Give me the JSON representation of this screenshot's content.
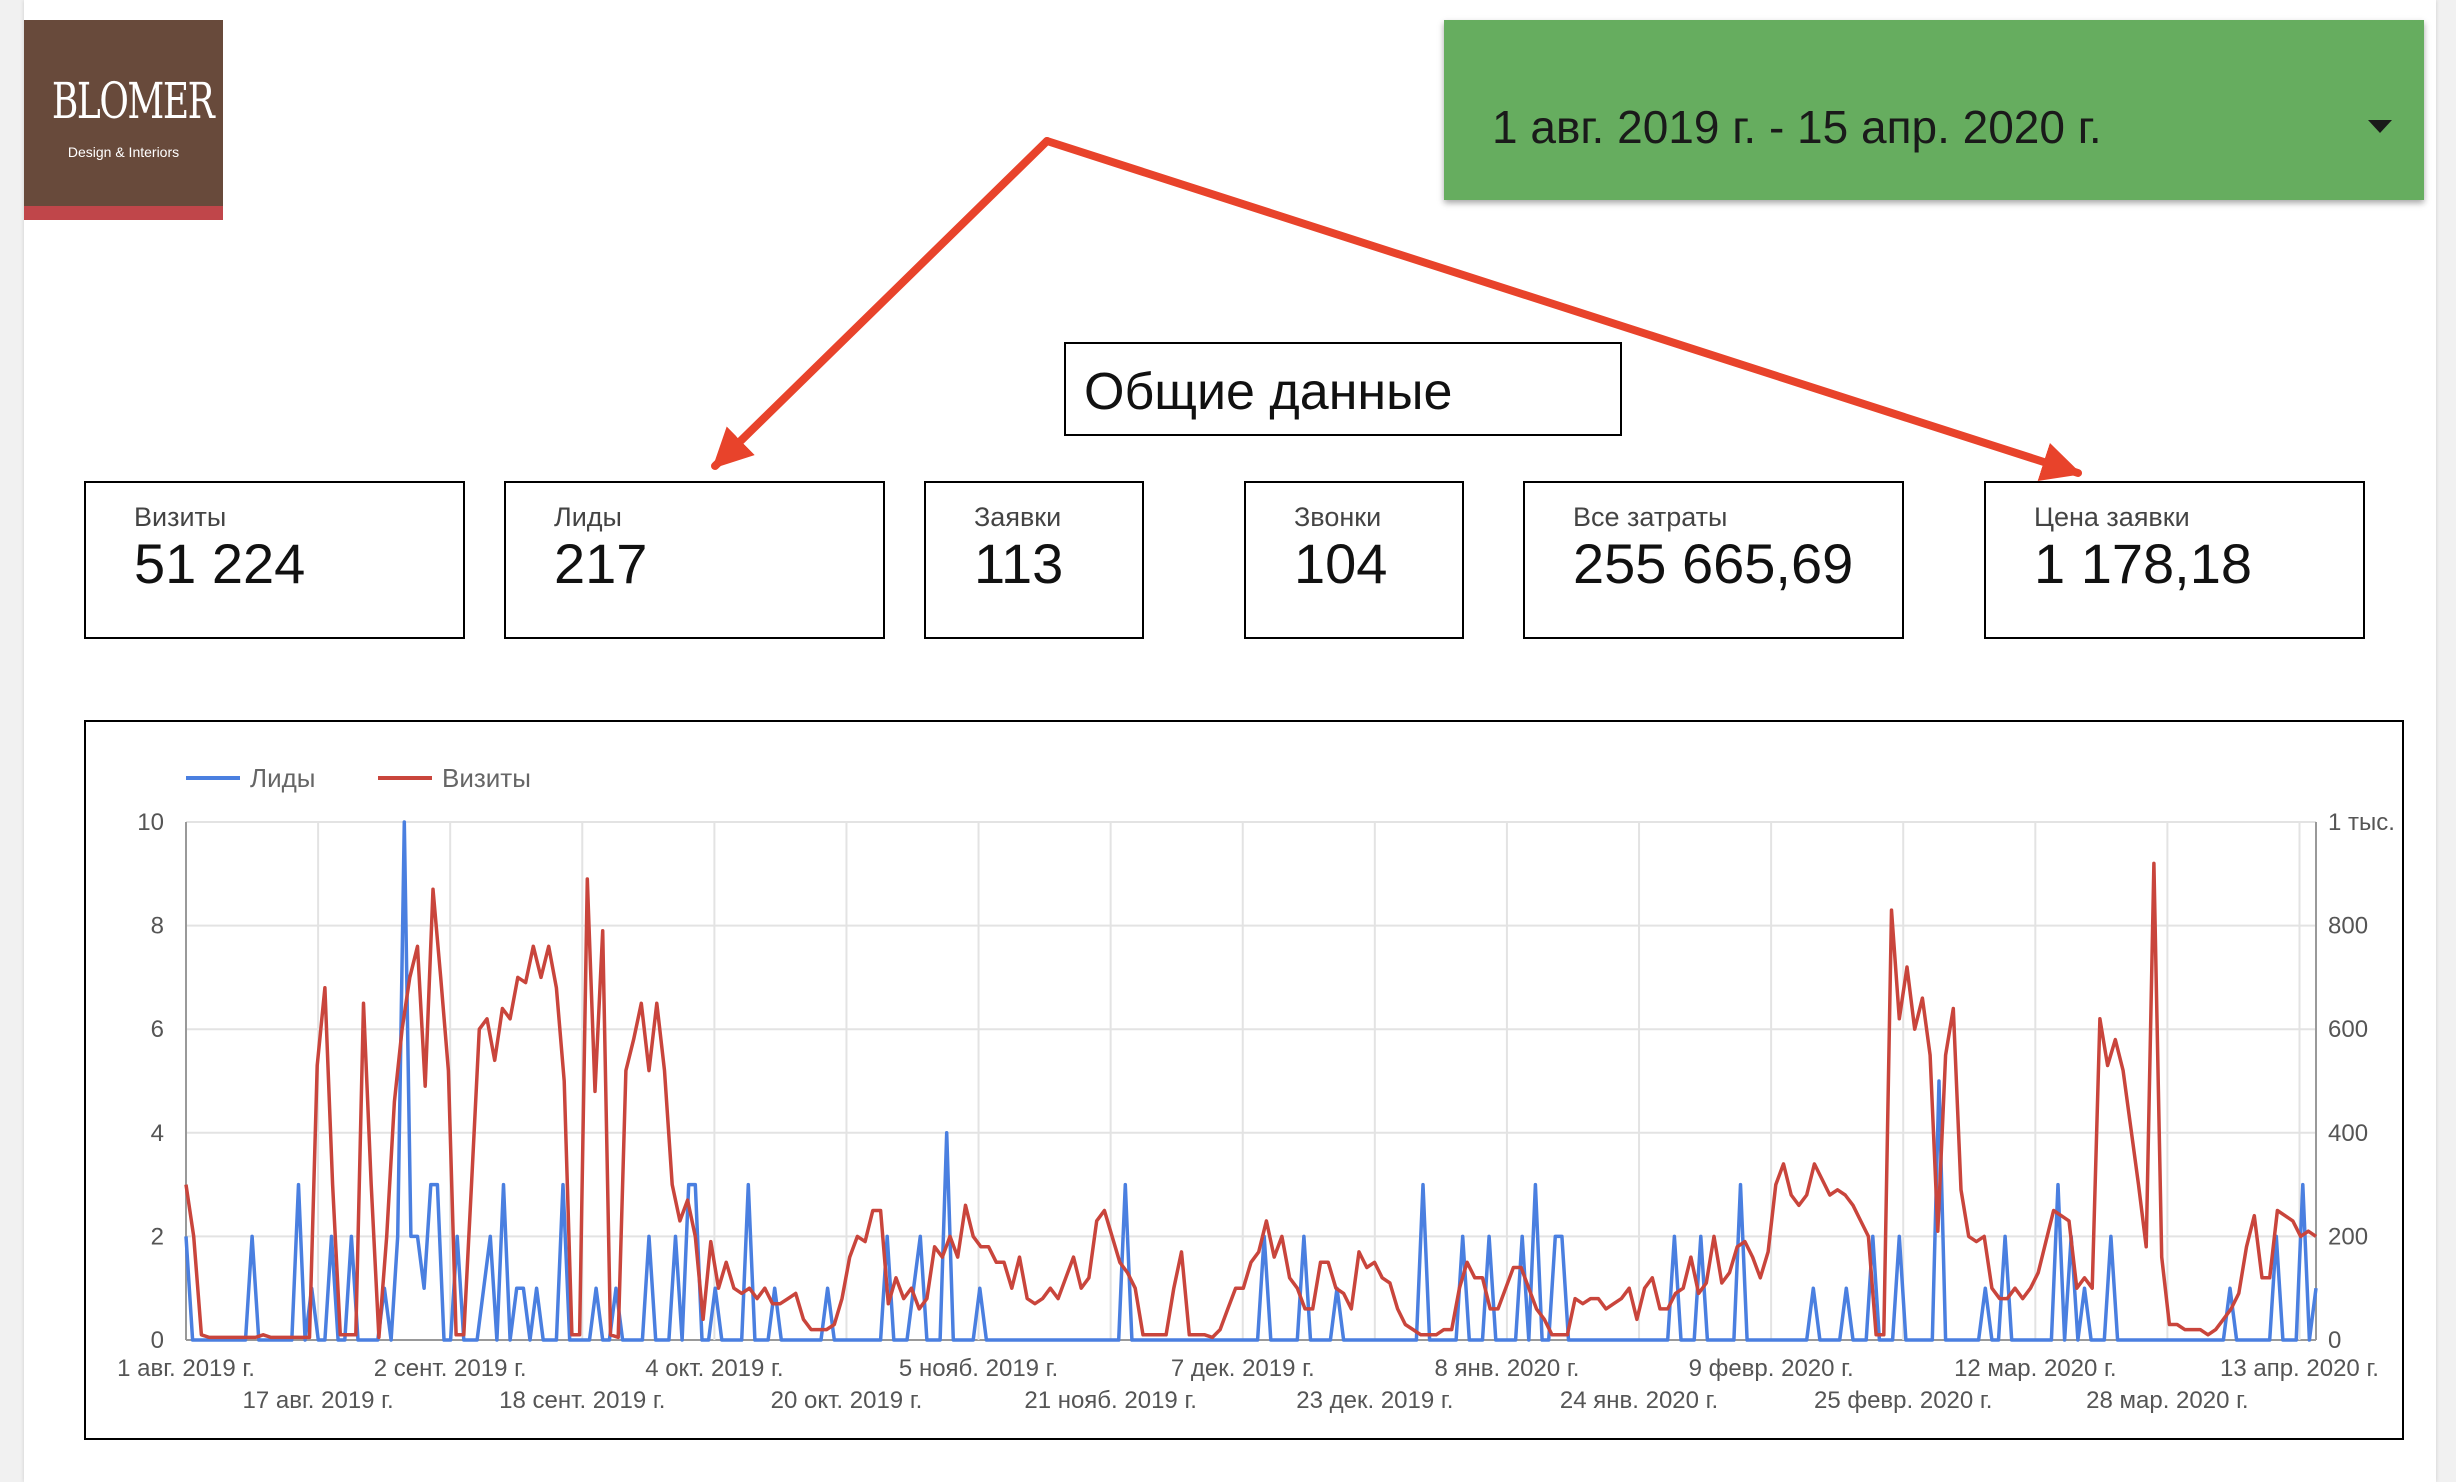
{
  "brand": {
    "name": "BLOMER",
    "tagline": "Design & Interiors"
  },
  "date_range": {
    "label": "1 авг. 2019 г. - 15 апр. 2020 г."
  },
  "section_title": "Общие данные",
  "scorecards": [
    {
      "label": "Визиты",
      "value": "51 224"
    },
    {
      "label": "Лиды",
      "value": "217"
    },
    {
      "label": "Заявки",
      "value": "113"
    },
    {
      "label": "Звонки",
      "value": "104"
    },
    {
      "label": "Все затраты",
      "value": "255 665,69"
    },
    {
      "label": "Цена заявки",
      "value": "1 178,18"
    }
  ],
  "colors": {
    "leads": "#4a7fe0",
    "visits": "#c9453c",
    "date_picker_bg": "#66ad5f",
    "logo_bg": "#684a3b",
    "logo_stripe": "#c0464a",
    "annotation_arrow": "#e8432b"
  },
  "chart_data": {
    "type": "line",
    "x_start": "2019-08-01",
    "x_end": "2020-04-15",
    "x_ticks_row1": [
      "1 авг. 2019 г.",
      "2 сент. 2019 г.",
      "4 окт. 2019 г.",
      "5 нояб. 2019 г.",
      "7 дек. 2019 г.",
      "8 янв. 2020 г.",
      "9 февр. 2020 г.",
      "12 мар. 2020 г.",
      "13 апр. 2020 г."
    ],
    "x_ticks_row2": [
      "17 авг. 2019 г.",
      "18 сент. 2019 г.",
      "20 окт. 2019 г.",
      "21 нояб. 2019 г.",
      "23 дек. 2019 г.",
      "24 янв. 2020 г.",
      "25 февр. 2020 г.",
      "28 мар. 2020 г."
    ],
    "y_left": {
      "ylim": [
        0,
        10
      ],
      "ticks": [
        "0",
        "2",
        "4",
        "6",
        "8",
        "10"
      ]
    },
    "y_right": {
      "ylim": [
        0,
        1000
      ],
      "ticks": [
        "0",
        "200",
        "400",
        "600",
        "800",
        "1 тыс."
      ]
    },
    "legend_placement": "top-left",
    "grid": true,
    "series": [
      {
        "name": "Лиды",
        "axis": "left",
        "color": "#4a7fe0",
        "values": [
          2,
          0,
          0,
          0,
          0,
          0,
          0,
          0,
          0,
          0,
          2,
          0,
          0,
          0,
          0,
          0,
          0,
          3,
          0,
          1,
          0,
          0,
          2,
          0,
          0,
          2,
          0,
          0,
          0,
          0,
          1,
          0,
          2,
          10,
          2,
          2,
          1,
          3,
          3,
          0,
          0,
          2,
          0,
          0,
          0,
          1,
          2,
          0,
          3,
          0,
          1,
          1,
          0,
          1,
          0,
          0,
          0,
          3,
          0,
          0,
          0,
          0,
          1,
          0,
          0,
          1,
          0,
          0,
          0,
          0,
          2,
          0,
          0,
          0,
          2,
          0,
          3,
          3,
          0,
          0,
          1,
          0,
          0,
          0,
          0,
          3,
          0,
          0,
          0,
          1,
          0,
          0,
          0,
          0,
          0,
          0,
          0,
          1,
          0,
          0,
          0,
          0,
          0,
          0,
          0,
          0,
          2,
          0,
          0,
          0,
          1,
          2,
          0,
          0,
          0,
          4,
          0,
          0,
          0,
          0,
          1,
          0,
          0,
          0,
          0,
          0,
          0,
          0,
          0,
          0,
          0,
          0,
          0,
          0,
          0,
          0,
          0,
          0,
          0,
          0,
          0,
          0,
          3,
          0,
          0,
          0,
          0,
          0,
          0,
          0,
          0,
          0,
          0,
          0,
          0,
          0,
          0,
          0,
          0,
          0,
          0,
          0,
          0,
          2,
          0,
          0,
          0,
          0,
          0,
          2,
          0,
          0,
          0,
          0,
          1,
          0,
          0,
          0,
          0,
          0,
          0,
          0,
          0,
          0,
          0,
          0,
          0,
          3,
          0,
          0,
          0,
          0,
          0,
          2,
          0,
          0,
          0,
          2,
          0,
          0,
          0,
          0,
          2,
          0,
          3,
          0,
          0,
          2,
          2,
          0,
          0,
          0,
          0,
          0,
          0,
          0,
          0,
          0,
          0,
          0,
          0,
          0,
          0,
          0,
          0,
          2,
          0,
          0,
          0,
          2,
          0,
          0,
          0,
          0,
          0,
          3,
          0,
          0,
          0,
          0,
          0,
          0,
          0,
          0,
          0,
          0,
          1,
          0,
          0,
          0,
          0,
          1,
          0,
          0,
          0,
          2,
          0,
          0,
          0,
          2,
          0,
          0,
          0,
          0,
          0,
          5,
          0,
          0,
          0,
          0,
          0,
          0,
          1,
          0,
          0,
          2,
          0,
          0,
          0,
          0,
          0,
          0,
          0,
          3,
          0,
          2,
          0,
          1,
          0,
          0,
          0,
          2,
          0,
          0,
          0,
          0,
          0,
          0,
          0,
          0,
          0,
          0,
          0,
          0,
          0,
          0,
          0,
          0,
          0,
          1,
          0,
          0,
          0,
          0,
          0,
          0,
          2,
          0,
          0,
          0,
          3,
          0,
          1
        ]
      },
      {
        "name": "Визиты",
        "axis": "right",
        "color": "#c9453c",
        "values": [
          300,
          200,
          10,
          5,
          5,
          5,
          5,
          5,
          5,
          5,
          10,
          5,
          5,
          5,
          5,
          5,
          5,
          530,
          680,
          300,
          10,
          10,
          10,
          650,
          300,
          5,
          200,
          460,
          600,
          700,
          760,
          490,
          870,
          700,
          520,
          10,
          10,
          300,
          600,
          620,
          540,
          640,
          620,
          700,
          690,
          760,
          700,
          760,
          680,
          500,
          10,
          10,
          890,
          480,
          790,
          10,
          5,
          520,
          580,
          650,
          520,
          650,
          520,
          300,
          230,
          270,
          200,
          40,
          190,
          100,
          150,
          100,
          90,
          100,
          80,
          100,
          70,
          70,
          80,
          90,
          40,
          20,
          20,
          20,
          30,
          80,
          160,
          200,
          190,
          250,
          250,
          70,
          120,
          80,
          100,
          60,
          80,
          180,
          160,
          200,
          160,
          260,
          200,
          180,
          180,
          150,
          150,
          100,
          160,
          80,
          70,
          80,
          100,
          80,
          120,
          160,
          100,
          120,
          230,
          250,
          200,
          150,
          130,
          100,
          10,
          10,
          10,
          10,
          100,
          170,
          10,
          10,
          10,
          5,
          20,
          60,
          100,
          100,
          150,
          170,
          230,
          160,
          200,
          120,
          100,
          60,
          60,
          150,
          150,
          100,
          90,
          60,
          170,
          140,
          150,
          120,
          110,
          60,
          30,
          20,
          10,
          10,
          10,
          20,
          20,
          100,
          150,
          120,
          120,
          60,
          60,
          100,
          140,
          140,
          100,
          60,
          40,
          10,
          10,
          10,
          80,
          70,
          80,
          80,
          60,
          70,
          80,
          100,
          40,
          100,
          120,
          60,
          60,
          90,
          100,
          160,
          90,
          110,
          200,
          110,
          130,
          180,
          190,
          160,
          120,
          170,
          300,
          340,
          280,
          260,
          280,
          340,
          310,
          280,
          290,
          280,
          260,
          230,
          200,
          10,
          10,
          830,
          620,
          720,
          600,
          660,
          550,
          210,
          550,
          640,
          290,
          200,
          190,
          200,
          100,
          80,
          80,
          100,
          80,
          100,
          130,
          190,
          250,
          240,
          230,
          100,
          120,
          100,
          620,
          530,
          580,
          520,
          410,
          300,
          180,
          920,
          160,
          30,
          30,
          20,
          20,
          20,
          10,
          20,
          40,
          60,
          90,
          180,
          240,
          120,
          120,
          250,
          240,
          230,
          200,
          210,
          200
        ]
      }
    ]
  }
}
